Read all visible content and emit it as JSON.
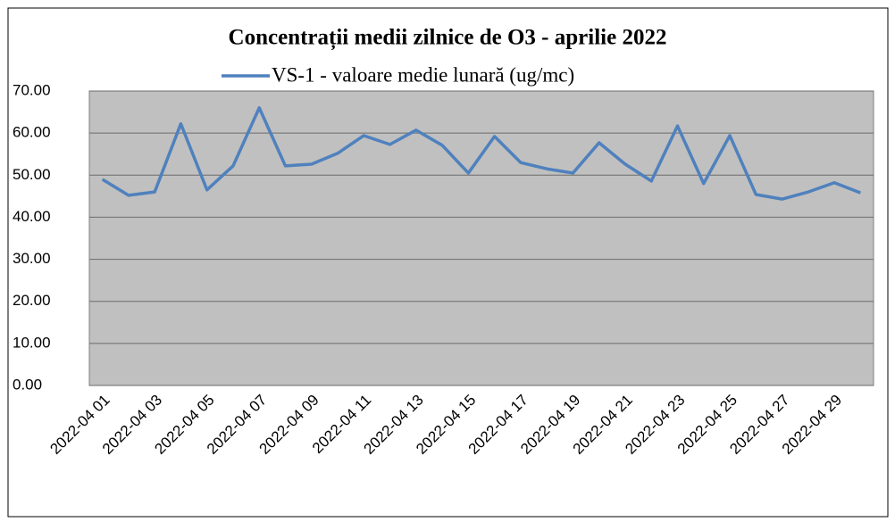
{
  "chart_data": {
    "type": "line",
    "title": "Concentrații  medii zilnice de O3 - aprilie 2022",
    "categories": [
      "2022-04 01",
      null,
      "2022-04 03",
      null,
      "2022-04 05",
      null,
      "2022-04 07",
      null,
      "2022-04 09",
      null,
      "2022-04 11",
      null,
      "2022-04 13",
      null,
      "2022-04 15",
      null,
      "2022-04 17",
      null,
      "2022-04 19",
      null,
      "2022-04 21",
      null,
      "2022-04 23",
      null,
      "2022-04 25",
      null,
      "2022-04 27",
      null,
      "2022-04 29",
      null
    ],
    "series": [
      {
        "name": "VS-1 - valoare medie lunară (ug/mc)",
        "color": "#4f81bd",
        "values": [
          49.0,
          45.2,
          46.0,
          62.2,
          46.5,
          52.2,
          66.0,
          52.2,
          52.6,
          55.2,
          59.4,
          57.3,
          60.7,
          57.1,
          50.5,
          59.2,
          53.0,
          51.5,
          50.5,
          57.7,
          52.6,
          48.6,
          61.7,
          48.0,
          59.4,
          45.4,
          44.3,
          46.0,
          48.2,
          45.8
        ]
      }
    ],
    "ylim": [
      0,
      70
    ],
    "yticks": [
      {
        "value": 0,
        "label": "0.00"
      },
      {
        "value": 10,
        "label": "10.00"
      },
      {
        "value": 20,
        "label": "20.00"
      },
      {
        "value": 30,
        "label": "30.00"
      },
      {
        "value": 40,
        "label": "40.00"
      },
      {
        "value": 50,
        "label": "50.00"
      },
      {
        "value": 60,
        "label": "60.00"
      },
      {
        "value": 70,
        "label": "70.00"
      }
    ],
    "grid": true,
    "legend": "top",
    "plot_background": "#c0c0c0"
  }
}
